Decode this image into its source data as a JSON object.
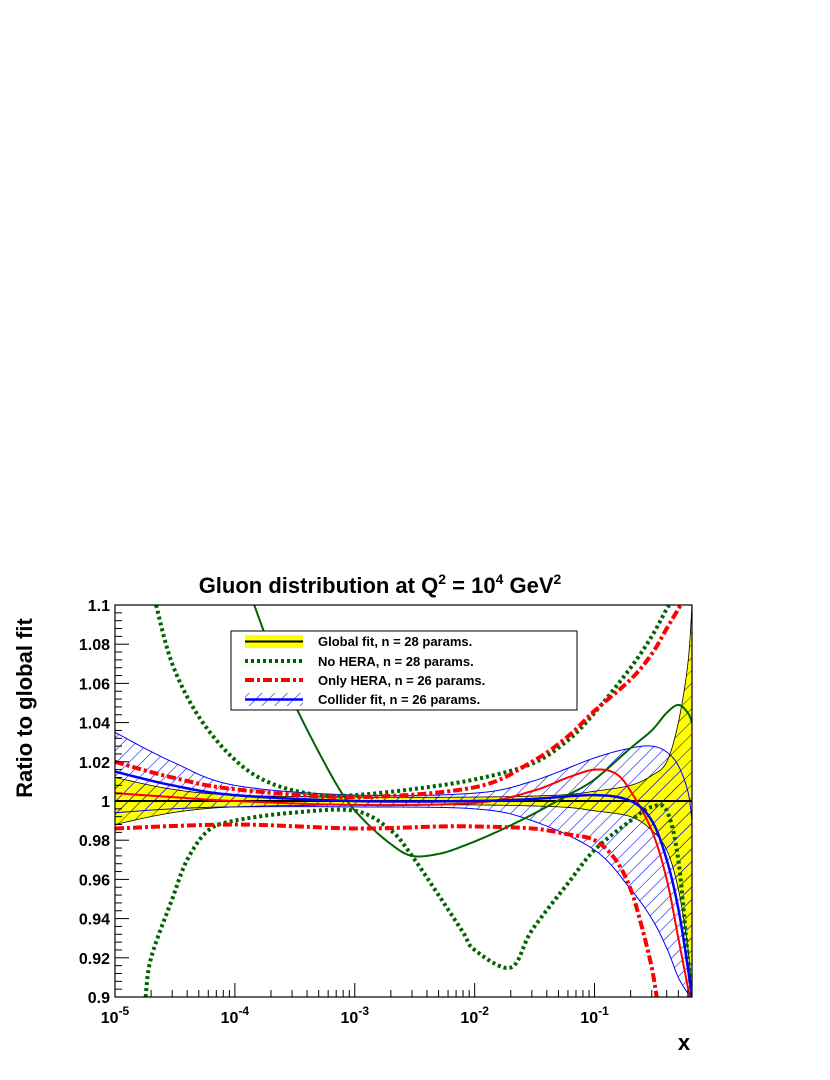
{
  "chart_data": {
    "type": "line",
    "title": "Gluon distribution at Q",
    "title_parts": {
      "base": "Gluon distribution at Q",
      "sup1": "2",
      "mid": " = 10",
      "sup2": "4",
      "mid2": " GeV",
      "sup3": "2"
    },
    "xlabel": "x",
    "ylabel": "Ratio to global fit",
    "x_scale": "log",
    "xlim": [
      1e-05,
      0.65
    ],
    "ylim": [
      0.9,
      1.1
    ],
    "x_ticks": [
      {
        "value": 1e-05,
        "base": "10",
        "exp": "-5"
      },
      {
        "value": 0.0001,
        "base": "10",
        "exp": "-4"
      },
      {
        "value": 0.001,
        "base": "10",
        "exp": "-3"
      },
      {
        "value": 0.01,
        "base": "10",
        "exp": "-2"
      },
      {
        "value": 0.1,
        "base": "10",
        "exp": "-1"
      }
    ],
    "y_ticks": [
      {
        "value": 0.9,
        "label": "0.9"
      },
      {
        "value": 0.92,
        "label": "0.92"
      },
      {
        "value": 0.94,
        "label": "0.94"
      },
      {
        "value": 0.96,
        "label": "0.96"
      },
      {
        "value": 0.98,
        "label": "0.98"
      },
      {
        "value": 1.0,
        "label": "1"
      },
      {
        "value": 1.02,
        "label": "1.02"
      },
      {
        "value": 1.04,
        "label": "1.04"
      },
      {
        "value": 1.06,
        "label": "1.06"
      },
      {
        "value": 1.08,
        "label": "1.08"
      },
      {
        "value": 1.1,
        "label": "1.1"
      }
    ],
    "grid": false,
    "legend_position": "top-center",
    "colors": {
      "global_band": "#ffff00",
      "global_line": "#000000",
      "no_hera": "#006400",
      "only_hera": "#ff0000",
      "collider": "#0000ff"
    },
    "series": [
      {
        "name": "Global fit, n = 28 params.",
        "style": "global",
        "central": [
          [
            1e-05,
            1.0
          ],
          [
            0.65,
            1.0
          ]
        ],
        "upper": [
          [
            1e-05,
            1.012
          ],
          [
            3e-05,
            1.006
          ],
          [
            0.0001,
            1.003
          ],
          [
            0.001,
            1.002
          ],
          [
            0.01,
            1.002
          ],
          [
            0.05,
            1.003
          ],
          [
            0.1,
            1.005
          ],
          [
            0.2,
            1.008
          ],
          [
            0.3,
            1.013
          ],
          [
            0.4,
            1.02
          ],
          [
            0.5,
            1.04
          ],
          [
            0.6,
            1.07
          ],
          [
            0.65,
            1.1
          ]
        ],
        "lower": [
          [
            1e-05,
            0.988
          ],
          [
            3e-05,
            0.994
          ],
          [
            0.0001,
            0.997
          ],
          [
            0.001,
            0.998
          ],
          [
            0.01,
            0.998
          ],
          [
            0.05,
            0.997
          ],
          [
            0.1,
            0.995
          ],
          [
            0.2,
            0.992
          ],
          [
            0.3,
            0.985
          ],
          [
            0.4,
            0.975
          ],
          [
            0.5,
            0.955
          ],
          [
            0.6,
            0.925
          ],
          [
            0.65,
            0.9
          ]
        ]
      },
      {
        "name": "No HERA, n = 28 params.",
        "style": "no_hera",
        "central": [
          [
            0.000145,
            1.1
          ],
          [
            0.0002,
            1.077
          ],
          [
            0.0003,
            1.052
          ],
          [
            0.0005,
            1.025
          ],
          [
            0.0008,
            1.003
          ],
          [
            0.0012,
            0.99
          ],
          [
            0.002,
            0.978
          ],
          [
            0.003,
            0.972
          ],
          [
            0.005,
            0.973
          ],
          [
            0.008,
            0.977
          ],
          [
            0.015,
            0.984
          ],
          [
            0.03,
            0.993
          ],
          [
            0.06,
            1.003
          ],
          [
            0.1,
            1.011
          ],
          [
            0.2,
            1.027
          ],
          [
            0.3,
            1.036
          ],
          [
            0.4,
            1.045
          ],
          [
            0.5,
            1.049
          ],
          [
            0.6,
            1.045
          ],
          [
            0.65,
            1.04
          ]
        ],
        "upper": [
          [
            2.2e-05,
            1.1
          ],
          [
            3e-05,
            1.07
          ],
          [
            5e-05,
            1.043
          ],
          [
            0.0001,
            1.021
          ],
          [
            0.0002,
            1.009
          ],
          [
            0.0005,
            1.003
          ],
          [
            0.001,
            1.003
          ],
          [
            0.003,
            1.006
          ],
          [
            0.01,
            1.011
          ],
          [
            0.03,
            1.019
          ],
          [
            0.06,
            1.031
          ],
          [
            0.1,
            1.045
          ],
          [
            0.2,
            1.068
          ],
          [
            0.3,
            1.084
          ],
          [
            0.4,
            1.098
          ],
          [
            0.43,
            1.1
          ]
        ],
        "lower": [
          [
            1.8e-05,
            0.9
          ],
          [
            2e-05,
            0.92
          ],
          [
            3e-05,
            0.95
          ],
          [
            4e-05,
            0.97
          ],
          [
            6e-05,
            0.985
          ],
          [
            0.0001,
            0.99
          ],
          [
            0.0003,
            0.994
          ],
          [
            0.001,
            0.995
          ],
          [
            0.002,
            0.985
          ],
          [
            0.003,
            0.972
          ],
          [
            0.005,
            0.952
          ],
          [
            0.008,
            0.933
          ],
          [
            0.01,
            0.924
          ],
          [
            0.02,
            0.915
          ],
          [
            0.03,
            0.934
          ],
          [
            0.06,
            0.958
          ],
          [
            0.1,
            0.975
          ],
          [
            0.2,
            0.99
          ],
          [
            0.3,
            0.997
          ],
          [
            0.4,
            0.995
          ],
          [
            0.5,
            0.97
          ],
          [
            0.6,
            0.92
          ],
          [
            0.65,
            0.9
          ]
        ]
      },
      {
        "name": "Only HERA, n = 26 params.",
        "style": "only_hera",
        "central": [
          [
            1e-05,
            1.004
          ],
          [
            3e-05,
            1.002
          ],
          [
            0.0001,
            1.0
          ],
          [
            0.001,
            0.998
          ],
          [
            0.01,
            0.999
          ],
          [
            0.03,
            1.005
          ],
          [
            0.06,
            1.012
          ],
          [
            0.1,
            1.016
          ],
          [
            0.15,
            1.014
          ],
          [
            0.2,
            1.005
          ],
          [
            0.3,
            0.985
          ],
          [
            0.4,
            0.96
          ],
          [
            0.5,
            0.93
          ],
          [
            0.6,
            0.905
          ],
          [
            0.62,
            0.9
          ]
        ],
        "upper": [
          [
            1e-05,
            1.02
          ],
          [
            3e-05,
            1.012
          ],
          [
            0.0001,
            1.006
          ],
          [
            0.001,
            1.002
          ],
          [
            0.01,
            1.007
          ],
          [
            0.03,
            1.02
          ],
          [
            0.06,
            1.033
          ],
          [
            0.1,
            1.046
          ],
          [
            0.2,
            1.062
          ],
          [
            0.3,
            1.075
          ],
          [
            0.4,
            1.088
          ],
          [
            0.5,
            1.098
          ],
          [
            0.52,
            1.1
          ]
        ],
        "lower": [
          [
            1e-05,
            0.986
          ],
          [
            0.0001,
            0.988
          ],
          [
            0.001,
            0.986
          ],
          [
            0.005,
            0.987
          ],
          [
            0.01,
            0.987
          ],
          [
            0.03,
            0.986
          ],
          [
            0.06,
            0.983
          ],
          [
            0.1,
            0.98
          ],
          [
            0.15,
            0.97
          ],
          [
            0.2,
            0.955
          ],
          [
            0.25,
            0.935
          ],
          [
            0.3,
            0.915
          ],
          [
            0.33,
            0.9
          ]
        ]
      },
      {
        "name": "Collider fit, n = 26 params.",
        "style": "collider",
        "central": [
          [
            1e-05,
            1.015
          ],
          [
            3e-05,
            1.008
          ],
          [
            0.0001,
            1.003
          ],
          [
            0.001,
            1.0
          ],
          [
            0.01,
            1.0
          ],
          [
            0.03,
            1.001
          ],
          [
            0.1,
            1.003
          ],
          [
            0.2,
            1.0
          ],
          [
            0.3,
            0.99
          ],
          [
            0.4,
            0.97
          ],
          [
            0.5,
            0.945
          ],
          [
            0.6,
            0.915
          ],
          [
            0.65,
            0.9
          ]
        ],
        "upper": [
          [
            1e-05,
            1.035
          ],
          [
            3e-05,
            1.02
          ],
          [
            0.0001,
            1.008
          ],
          [
            0.001,
            1.003
          ],
          [
            0.01,
            1.004
          ],
          [
            0.03,
            1.01
          ],
          [
            0.1,
            1.022
          ],
          [
            0.2,
            1.027
          ],
          [
            0.3,
            1.028
          ],
          [
            0.4,
            1.025
          ],
          [
            0.5,
            1.018
          ],
          [
            0.6,
            1.005
          ],
          [
            0.65,
            0.99
          ]
        ],
        "lower": [
          [
            1e-05,
            0.994
          ],
          [
            3e-05,
            0.996
          ],
          [
            0.0001,
            0.997
          ],
          [
            0.001,
            0.997
          ],
          [
            0.01,
            0.996
          ],
          [
            0.03,
            0.99
          ],
          [
            0.1,
            0.975
          ],
          [
            0.2,
            0.955
          ],
          [
            0.3,
            0.94
          ],
          [
            0.4,
            0.925
          ],
          [
            0.5,
            0.91
          ],
          [
            0.6,
            0.902
          ],
          [
            0.65,
            0.9
          ]
        ]
      }
    ]
  }
}
